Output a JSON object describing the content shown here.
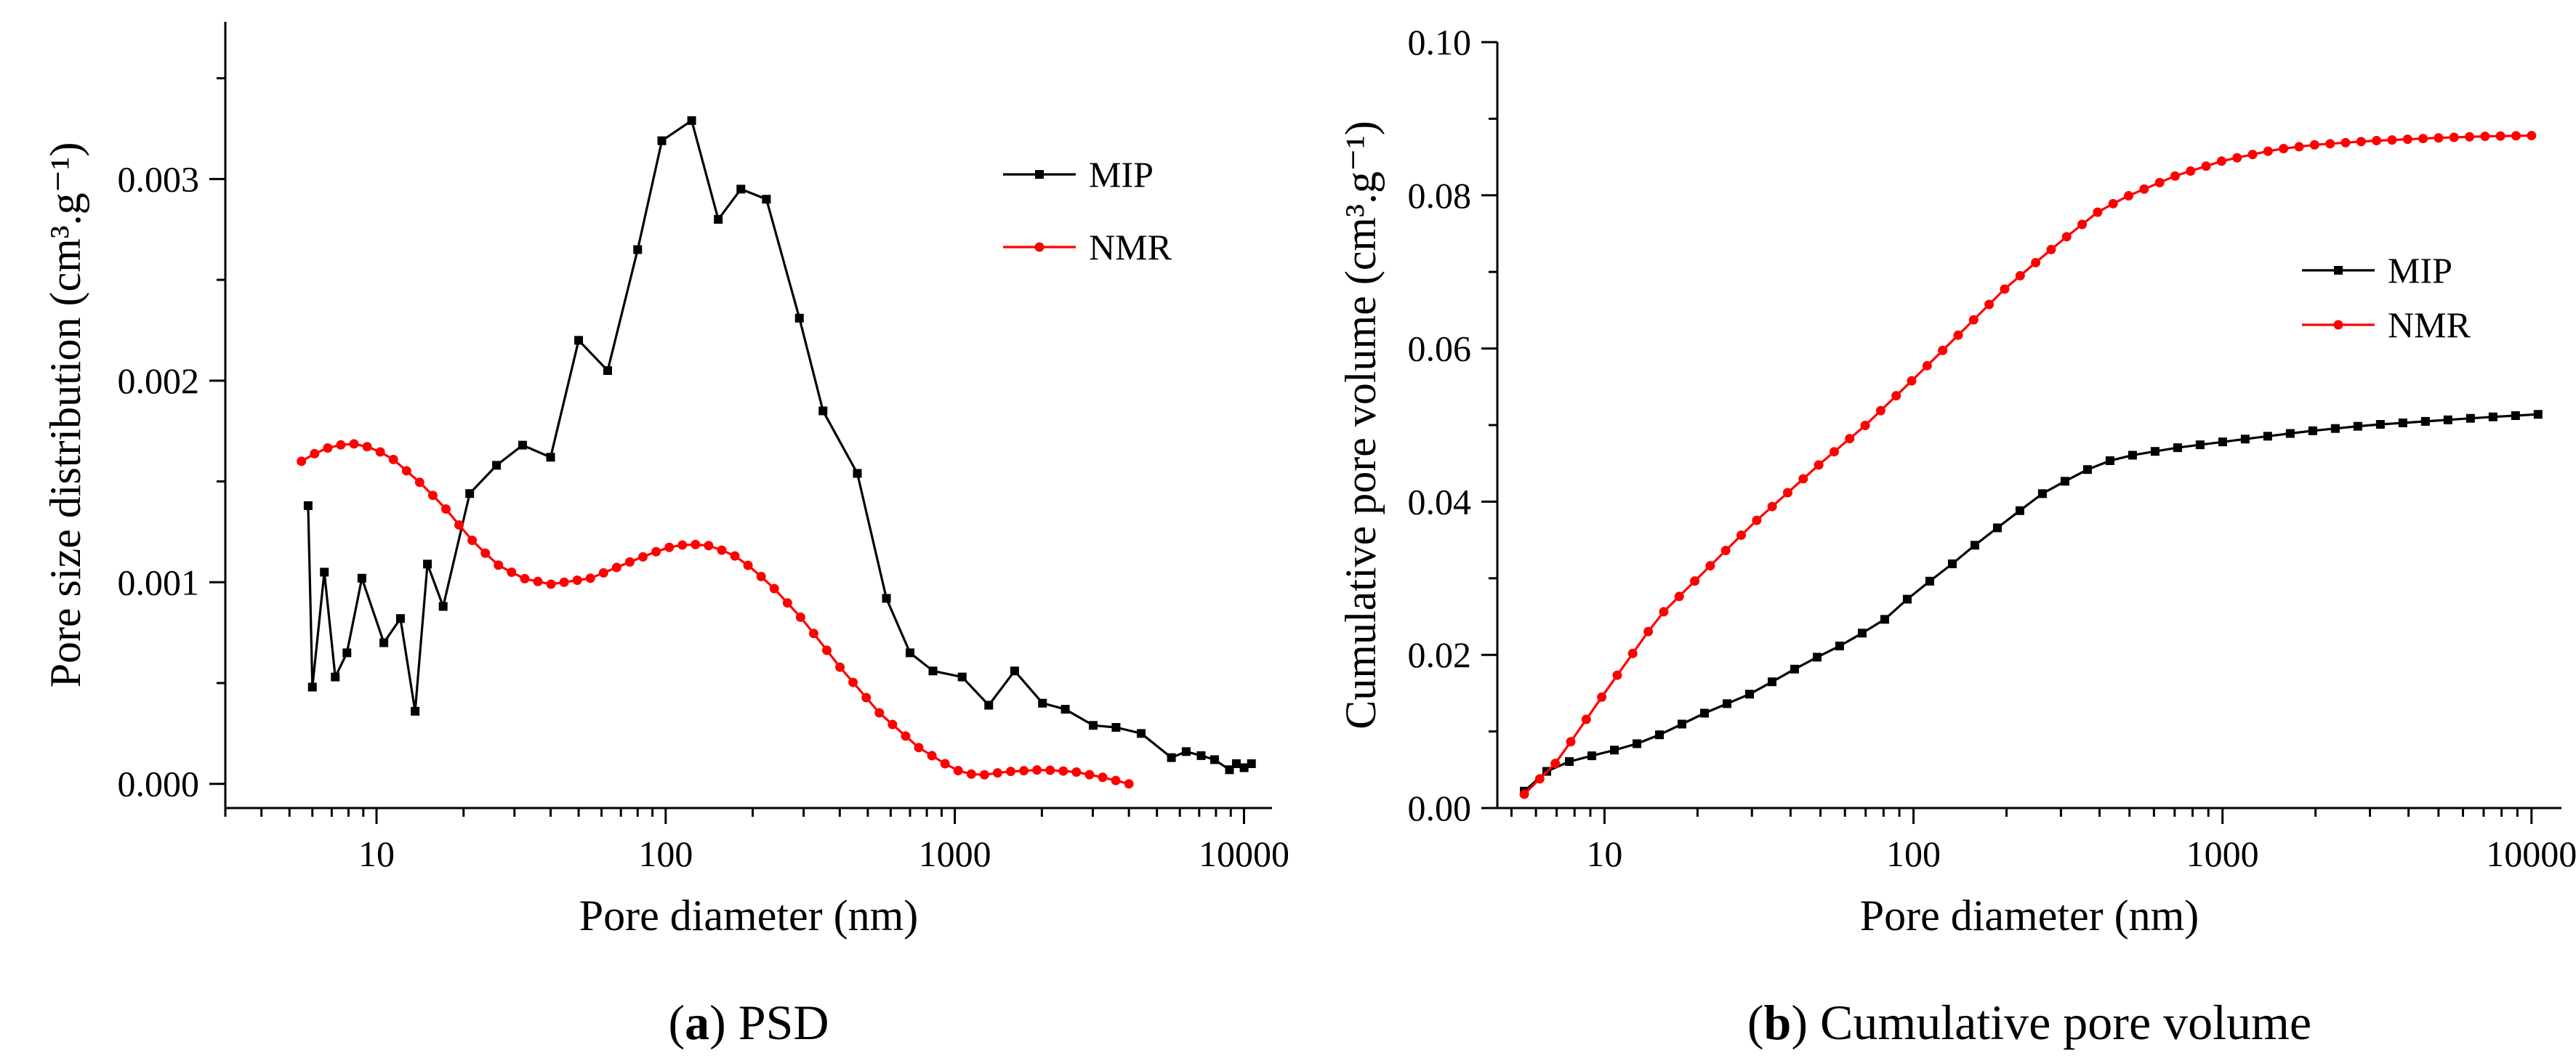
{
  "colors": {
    "mip": "#000000",
    "nmr": "#ff0000"
  },
  "chart_data": [
    {
      "id": "a",
      "type": "line",
      "xscale": "log",
      "caption": {
        "letter": "a",
        "text": "PSD"
      },
      "xlabel": "Pore diameter  (nm)",
      "ylabel": "Pore size distribution  (cm³.g⁻¹)",
      "xlim": [
        3,
        12500
      ],
      "ylim": [
        -0.00012,
        0.00378
      ],
      "xticks": [
        {
          "value": 10,
          "label": "10"
        },
        {
          "value": 100,
          "label": "100"
        },
        {
          "value": 1000,
          "label": "1000"
        },
        {
          "value": 10000,
          "label": "10000"
        }
      ],
      "yticks": [
        {
          "value": 0.0,
          "label": "0.000"
        },
        {
          "value": 0.001,
          "label": "0.001"
        },
        {
          "value": 0.002,
          "label": "0.002"
        },
        {
          "value": 0.003,
          "label": "0.003"
        }
      ],
      "legend": {
        "position": "top-right",
        "items": [
          "MIP",
          "NMR"
        ]
      },
      "series": [
        {
          "name": "MIP",
          "color": "#000000",
          "marker": "square",
          "points": [
            [
              5.8,
              0.00138
            ],
            [
              6.0,
              0.00048
            ],
            [
              6.6,
              0.00105
            ],
            [
              7.2,
              0.00053
            ],
            [
              7.9,
              0.00065
            ],
            [
              8.9,
              0.00102
            ],
            [
              10.6,
              0.0007
            ],
            [
              12.1,
              0.00082
            ],
            [
              13.6,
              0.00036
            ],
            [
              15.0,
              0.00109
            ],
            [
              17.0,
              0.00088
            ],
            [
              21,
              0.00144
            ],
            [
              26,
              0.00158
            ],
            [
              32,
              0.00168
            ],
            [
              40,
              0.00162
            ],
            [
              50,
              0.0022
            ],
            [
              63,
              0.00205
            ],
            [
              80,
              0.00265
            ],
            [
              97,
              0.00319
            ],
            [
              123,
              0.00329
            ],
            [
              152,
              0.0028
            ],
            [
              182,
              0.00295
            ],
            [
              223,
              0.0029
            ],
            [
              290,
              0.00231
            ],
            [
              350,
              0.00185
            ],
            [
              460,
              0.00154
            ],
            [
              580,
              0.00092
            ],
            [
              700,
              0.00065
            ],
            [
              840,
              0.00056
            ],
            [
              1060,
              0.00053
            ],
            [
              1310,
              0.00039
            ],
            [
              1610,
              0.00056
            ],
            [
              2010,
              0.0004
            ],
            [
              2410,
              0.00037
            ],
            [
              3010,
              0.00029
            ],
            [
              3610,
              0.00028
            ],
            [
              4410,
              0.00025
            ],
            [
              5610,
              0.00013
            ],
            [
              6310,
              0.00016
            ],
            [
              7110,
              0.00014
            ],
            [
              7910,
              0.00012
            ],
            [
              8910,
              7e-05
            ],
            [
              9410,
              0.0001
            ],
            [
              10010,
              8e-05
            ],
            [
              10610,
              0.0001
            ]
          ]
        },
        {
          "name": "NMR",
          "color": "#ff0000",
          "marker": "circle",
          "curve": {
            "x_start": 5.5,
            "x_end": 4000,
            "count": 64,
            "knots": [
              [
                5.5,
                0.0016
              ],
              [
                6.5,
                0.00166
              ],
              [
                8,
                0.00169
              ],
              [
                9,
                0.00168
              ],
              [
                11,
                0.00163
              ],
              [
                14,
                0.0015
              ],
              [
                17,
                0.00138
              ],
              [
                21,
                0.00122
              ],
              [
                26,
                0.00109
              ],
              [
                32,
                0.00102
              ],
              [
                40,
                0.00099
              ],
              [
                55,
                0.00102
              ],
              [
                75,
                0.0011
              ],
              [
                100,
                0.00117
              ],
              [
                120,
                0.00119
              ],
              [
                145,
                0.00118
              ],
              [
                180,
                0.00112
              ],
              [
                230,
                0.00099
              ],
              [
                300,
                0.00081
              ],
              [
                400,
                0.00058
              ],
              [
                550,
                0.00035
              ],
              [
                750,
                0.00018
              ],
              [
                1000,
                7e-05
              ],
              [
                1200,
                4e-05
              ],
              [
                1500,
                6e-05
              ],
              [
                2000,
                7e-05
              ],
              [
                2600,
                6e-05
              ],
              [
                3300,
                3e-05
              ],
              [
                4000,
                0.0
              ]
            ]
          }
        }
      ]
    },
    {
      "id": "b",
      "type": "line",
      "xscale": "log",
      "caption": {
        "letter": "b",
        "text": "Cumulative pore volume"
      },
      "xlabel": "Pore diameter  (nm)",
      "ylabel": "Cumulative pore volume  (cm³.g⁻¹)",
      "xlim": [
        4.5,
        12500
      ],
      "ylim": [
        0.0,
        0.1
      ],
      "xticks": [
        {
          "value": 10,
          "label": "10"
        },
        {
          "value": 100,
          "label": "100"
        },
        {
          "value": 1000,
          "label": "1000"
        },
        {
          "value": 10000,
          "label": "10000"
        }
      ],
      "yticks": [
        {
          "value": 0.0,
          "label": "0.00"
        },
        {
          "value": 0.02,
          "label": "0.02"
        },
        {
          "value": 0.04,
          "label": "0.04"
        },
        {
          "value": 0.06,
          "label": "0.06"
        },
        {
          "value": 0.08,
          "label": "0.08"
        },
        {
          "value": 0.1,
          "label": "0.10"
        }
      ],
      "legend": {
        "position": "right",
        "items": [
          "MIP",
          "NMR"
        ]
      },
      "series": [
        {
          "name": "MIP",
          "color": "#000000",
          "marker": "square",
          "curve": {
            "x_start": 5.5,
            "x_end": 10500,
            "count": 46,
            "knots": [
              [
                5.5,
                0.0022
              ],
              [
                6,
                0.004
              ],
              [
                7,
                0.0055
              ],
              [
                8,
                0.0063
              ],
              [
                10,
                0.0072
              ],
              [
                13,
                0.0085
              ],
              [
                16,
                0.01
              ],
              [
                20,
                0.012
              ],
              [
                30,
                0.015
              ],
              [
                45,
                0.019
              ],
              [
                60,
                0.0215
              ],
              [
                80,
                0.0245
              ],
              [
                100,
                0.028
              ],
              [
                130,
                0.0315
              ],
              [
                160,
                0.0345
              ],
              [
                200,
                0.0375
              ],
              [
                260,
                0.041
              ],
              [
                320,
                0.043
              ],
              [
                400,
                0.045
              ],
              [
                500,
                0.046
              ],
              [
                700,
                0.047
              ],
              [
                1000,
                0.0478
              ],
              [
                1500,
                0.0487
              ],
              [
                2000,
                0.0493
              ],
              [
                3000,
                0.05
              ],
              [
                5000,
                0.0506
              ],
              [
                7000,
                0.051
              ],
              [
                10500,
                0.0514
              ]
            ]
          }
        },
        {
          "name": "NMR",
          "color": "#ff0000",
          "marker": "circle",
          "curve": {
            "x_start": 5.5,
            "x_end": 10000,
            "count": 66,
            "knots": [
              [
                5.5,
                0.0018
              ],
              [
                7,
                0.006
              ],
              [
                10,
                0.015
              ],
              [
                15,
                0.025
              ],
              [
                20,
                0.03
              ],
              [
                30,
                0.037
              ],
              [
                50,
                0.045
              ],
              [
                70,
                0.05
              ],
              [
                100,
                0.056
              ],
              [
                150,
                0.063
              ],
              [
                200,
                0.068
              ],
              [
                300,
                0.074
              ],
              [
                400,
                0.078
              ],
              [
                500,
                0.08
              ],
              [
                700,
                0.0825
              ],
              [
                1000,
                0.0845
              ],
              [
                1500,
                0.086
              ],
              [
                2000,
                0.0866
              ],
              [
                3000,
                0.0871
              ],
              [
                5000,
                0.0875
              ],
              [
                7000,
                0.0877
              ],
              [
                10000,
                0.0878
              ]
            ]
          }
        }
      ]
    }
  ]
}
